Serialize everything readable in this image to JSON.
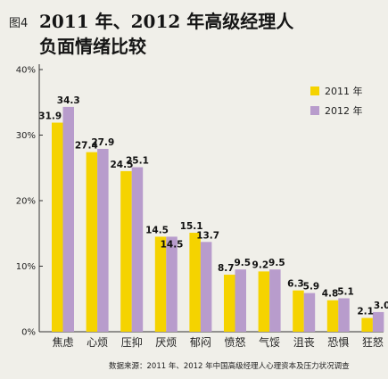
{
  "figure_label": "图4",
  "title_line1": "2011 年、2012 年高级经理人",
  "title_line2": "负面情绪比较",
  "source_note": "数据来源：2011 年、2012 年中国高级经理人心理资本及压力状况调查",
  "chart_data": {
    "type": "bar",
    "categories": [
      "焦虑",
      "心烦",
      "压抑",
      "厌烦",
      "郁闷",
      "愤怒",
      "气馁",
      "沮丧",
      "恐惧",
      "狂怒"
    ],
    "series": [
      {
        "name": "2011 年",
        "color": "#f5d300",
        "values": [
          31.9,
          27.4,
          24.5,
          14.5,
          15.1,
          8.7,
          9.2,
          6.3,
          4.8,
          2.1
        ]
      },
      {
        "name": "2012 年",
        "color": "#b89ccc",
        "values": [
          34.3,
          27.9,
          25.1,
          14.5,
          13.7,
          9.5,
          9.5,
          5.9,
          5.1,
          3.0
        ]
      }
    ],
    "data_labels_2011": [
      "31.9",
      "27.4",
      "24.5",
      "14.5",
      "15.1",
      "8.7",
      "9.2",
      "6.3",
      "4.8",
      "2.1"
    ],
    "data_labels_2012": [
      "34.3",
      "27.9",
      "25.1",
      "14.5",
      "13.7",
      "9.5",
      "9.5",
      "5.9",
      "5.1",
      "3.0"
    ],
    "ylim": [
      0,
      40
    ],
    "yticks": [
      0,
      10,
      20,
      30,
      40
    ],
    "ytick_labels": [
      "0%",
      "10%",
      "20%",
      "30%",
      "40%"
    ],
    "grid": false,
    "legend_position": "top-right"
  }
}
